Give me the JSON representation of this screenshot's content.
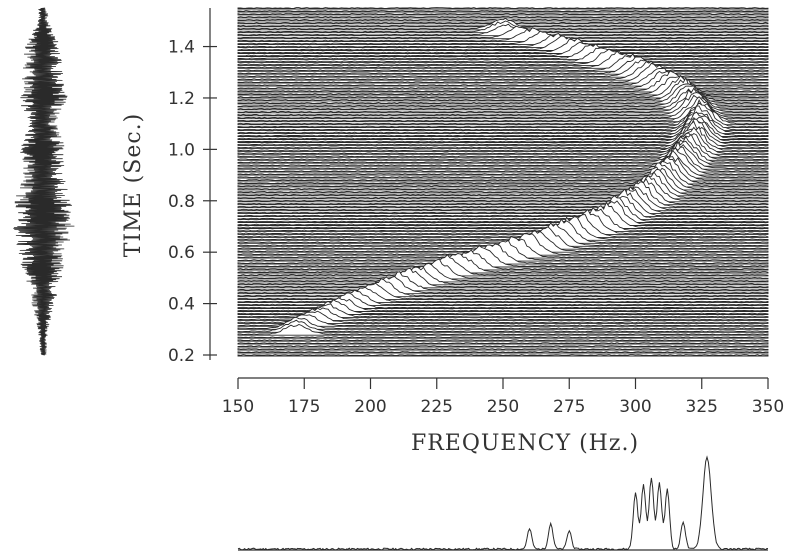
{
  "chart_data": [
    {
      "type": "line",
      "subtype": "waterfall-spectrogram",
      "xlabel": "FREQUENCY (Hz.)",
      "ylabel": "TIME (Sec.)",
      "xlim": [
        150,
        350
      ],
      "ylim": [
        0.2,
        1.55
      ],
      "xticks": [
        "150",
        "175",
        "200",
        "225",
        "250",
        "275",
        "300",
        "325",
        "350"
      ],
      "yticks": [
        "0.2",
        "0.4",
        "0.6",
        "0.8",
        "1.0",
        "1.2",
        "1.4"
      ],
      "chirp_ridge": {
        "time": [
          0.3,
          0.4,
          0.5,
          0.6,
          0.7,
          0.8,
          0.9,
          1.0,
          1.1,
          1.2,
          1.3,
          1.4,
          1.45
        ],
        "frequency": [
          172,
          195,
          225,
          262,
          290,
          305,
          315,
          322,
          325,
          318,
          300,
          270,
          250
        ]
      },
      "grid": false
    },
    {
      "type": "line",
      "subtype": "time-waveform",
      "ylim": [
        0.2,
        1.55
      ],
      "envelope": {
        "time": [
          0.2,
          0.3,
          0.4,
          0.5,
          0.6,
          0.7,
          0.8,
          0.9,
          1.0,
          1.1,
          1.2,
          1.3,
          1.4,
          1.5
        ],
        "amplitude": [
          0.1,
          0.15,
          0.35,
          0.55,
          0.75,
          0.95,
          0.85,
          0.6,
          0.7,
          0.4,
          0.75,
          0.6,
          0.55,
          0.15
        ]
      }
    },
    {
      "type": "line",
      "subtype": "spectrum",
      "xlim": [
        150,
        350
      ],
      "ylim": [
        0,
        1
      ],
      "peaks": {
        "frequency": [
          260,
          268,
          275,
          300,
          303,
          306,
          309,
          312,
          318,
          327
        ],
        "amplitude": [
          0.22,
          0.28,
          0.2,
          0.62,
          0.7,
          0.78,
          0.72,
          0.65,
          0.3,
          1.0
        ]
      }
    }
  ]
}
